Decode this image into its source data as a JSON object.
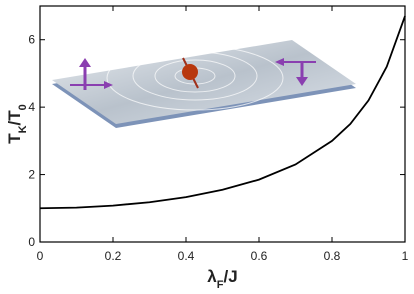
{
  "chart_data": {
    "type": "line",
    "xlabel": [
      "λ",
      "F",
      "/J"
    ],
    "ylabel": [
      "T",
      "K",
      "/T",
      "0"
    ],
    "x": [
      0,
      0.1,
      0.2,
      0.3,
      0.4,
      0.5,
      0.6,
      0.7,
      0.8,
      0.85,
      0.9,
      0.95,
      1.0
    ],
    "series": [
      {
        "color": "#000000",
        "values": [
          1.0,
          1.02,
          1.08,
          1.18,
          1.33,
          1.55,
          1.85,
          2.3,
          3.0,
          3.5,
          4.2,
          5.2,
          6.7
        ]
      }
    ],
    "xlim": [
      0,
      1
    ],
    "ylim": [
      0,
      7
    ],
    "xticks": [
      0,
      0.2,
      0.4,
      0.6,
      0.8,
      1
    ],
    "yticks": [
      0,
      2,
      4,
      6
    ]
  }
}
